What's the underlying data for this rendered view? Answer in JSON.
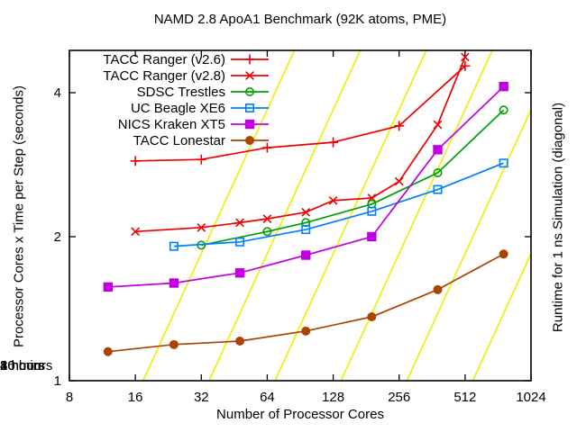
{
  "chart_data": {
    "type": "line",
    "title": "NAMD 2.8 ApoA1 Benchmark (92K atoms, PME)",
    "xlabel": "Number of Processor Cores",
    "ylabel": "Processor Cores x Time per Step (seconds)",
    "y2label": "Runtime for 1 ns Simulation (diagonal)",
    "x_scale": "log2",
    "y_scale": "log2",
    "xlim": [
      8,
      1024
    ],
    "ylim": [
      1,
      4.9
    ],
    "x_ticks": [
      8,
      16,
      32,
      64,
      128,
      256,
      512,
      1024
    ],
    "y_ticks": [
      1,
      2,
      4
    ],
    "grid": false,
    "legend_position": "top-left",
    "series": [
      {
        "name": "TACC Ranger (v2.6)",
        "color": "#ee0000",
        "marker": "plus",
        "x": [
          16,
          32,
          64,
          128,
          256,
          512
        ],
        "y": [
          2.88,
          2.9,
          3.07,
          3.15,
          3.41,
          4.55
        ]
      },
      {
        "name": "TACC Ranger (v2.8)",
        "color": "#ee0000",
        "marker": "cross",
        "x": [
          16,
          32,
          48,
          64,
          96,
          128,
          192,
          256,
          384,
          512
        ],
        "y": [
          2.05,
          2.09,
          2.14,
          2.18,
          2.25,
          2.38,
          2.41,
          2.61,
          3.43,
          4.75
        ]
      },
      {
        "name": "SDSC Trestles",
        "color": "#00a000",
        "marker": "circle-open",
        "x": [
          32,
          64,
          96,
          192,
          384,
          768
        ],
        "y": [
          1.92,
          2.05,
          2.14,
          2.34,
          2.72,
          3.68
        ]
      },
      {
        "name": "UC Beagle XE6",
        "color": "#0080ff",
        "marker": "square-open",
        "x": [
          24,
          48,
          96,
          192,
          384,
          768
        ],
        "y": [
          1.91,
          1.95,
          2.07,
          2.26,
          2.51,
          2.85
        ]
      },
      {
        "name": "NICS Kraken XT5",
        "color": "#c000e0",
        "marker": "square-filled",
        "x": [
          12,
          24,
          48,
          96,
          192,
          384,
          768
        ],
        "y": [
          1.57,
          1.6,
          1.68,
          1.83,
          2.0,
          3.04,
          4.12
        ]
      },
      {
        "name": "TACC Lonestar",
        "color": "#aa4400",
        "marker": "circle-filled",
        "x": [
          12,
          24,
          48,
          96,
          192,
          384,
          768
        ],
        "y": [
          1.15,
          1.19,
          1.21,
          1.27,
          1.36,
          1.55,
          1.84
        ]
      }
    ],
    "diagonals": {
      "color": "#eeee00",
      "labels": [
        "16 hours",
        "8 hours",
        "4 hours",
        "2 hours",
        "1 hour",
        "30 min"
      ],
      "cores_at_y1": [
        17.36,
        34.72,
        69.44,
        138.9,
        277.8,
        555.6
      ],
      "label_cores": [
        19,
        38,
        76,
        152,
        304,
        608
      ]
    }
  }
}
